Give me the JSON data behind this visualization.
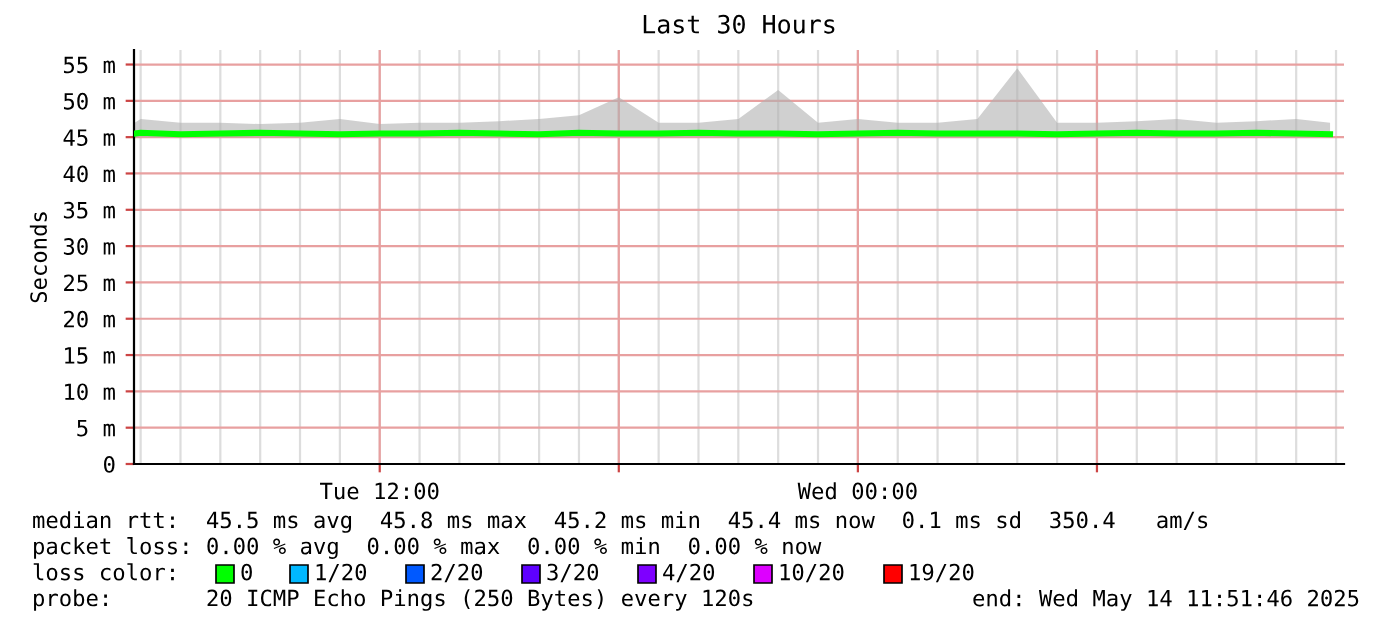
{
  "chart_data": {
    "type": "line",
    "title": "Last 30 Hours",
    "ylabel": "Seconds",
    "legend_title": "loss color:",
    "legend": "bottom",
    "x": [
      "2025-05-13T05:51",
      "2025-05-13T06:00",
      "2025-05-13T07:00",
      "2025-05-13T08:00",
      "2025-05-13T09:00",
      "2025-05-13T10:00",
      "2025-05-13T11:00",
      "2025-05-13T12:00",
      "2025-05-13T13:00",
      "2025-05-13T14:00",
      "2025-05-13T15:00",
      "2025-05-13T16:00",
      "2025-05-13T17:00",
      "2025-05-13T18:00",
      "2025-05-13T19:00",
      "2025-05-13T20:00",
      "2025-05-13T21:00",
      "2025-05-13T22:00",
      "2025-05-13T23:00",
      "2025-05-14T00:00",
      "2025-05-14T01:00",
      "2025-05-14T02:00",
      "2025-05-14T03:00",
      "2025-05-14T04:00",
      "2025-05-14T05:00",
      "2025-05-14T06:00",
      "2025-05-14T07:00",
      "2025-05-14T08:00",
      "2025-05-14T09:00",
      "2025-05-14T10:00",
      "2025-05-14T11:00",
      "2025-05-14T11:51"
    ],
    "series": [
      {
        "name": "0",
        "color": "#00ff00",
        "values": [
          45.5,
          45.6,
          45.4,
          45.5,
          45.6,
          45.5,
          45.4,
          45.5,
          45.5,
          45.6,
          45.5,
          45.4,
          45.6,
          45.5,
          45.5,
          45.6,
          45.5,
          45.5,
          45.4,
          45.5,
          45.6,
          45.5,
          45.5,
          45.5,
          45.4,
          45.5,
          45.6,
          45.5,
          45.5,
          45.6,
          45.5,
          45.4
        ],
        "lower": [
          45,
          45,
          45,
          45,
          45,
          45,
          45,
          45,
          45,
          45,
          45,
          45,
          45,
          45,
          45,
          45,
          45,
          45,
          45,
          45,
          45,
          45,
          45,
          45,
          45,
          45,
          45,
          45,
          45,
          45,
          45,
          45
        ],
        "upper": [
          47,
          47.5,
          47,
          47,
          46.8,
          47,
          47.5,
          46.8,
          47,
          47,
          47.2,
          47.5,
          48,
          50.5,
          47,
          47,
          47.5,
          51.5,
          47,
          47.5,
          47,
          47,
          47.5,
          54.5,
          47,
          47,
          47.2,
          47.5,
          47,
          47.2,
          47.5,
          47
        ]
      },
      {
        "name": "1/20",
        "color": "#00b8ff",
        "values": [
          null,
          null,
          null,
          null,
          null,
          null,
          null,
          null,
          null,
          null,
          null,
          null,
          null,
          null,
          null,
          null,
          null,
          null,
          null,
          null,
          null,
          null,
          null,
          null,
          null,
          null,
          null,
          null,
          null,
          null,
          null,
          null
        ]
      },
      {
        "name": "2/20",
        "color": "#0059ff",
        "values": [
          null,
          null,
          null,
          null,
          null,
          null,
          null,
          null,
          null,
          null,
          null,
          null,
          null,
          null,
          null,
          null,
          null,
          null,
          null,
          null,
          null,
          null,
          null,
          null,
          null,
          null,
          null,
          null,
          null,
          null,
          null,
          null
        ]
      },
      {
        "name": "3/20",
        "color": "#5e00ff",
        "values": [
          null,
          null,
          null,
          null,
          null,
          null,
          null,
          null,
          null,
          null,
          null,
          null,
          null,
          null,
          null,
          null,
          null,
          null,
          null,
          null,
          null,
          null,
          null,
          null,
          null,
          null,
          null,
          null,
          null,
          null,
          null,
          null
        ]
      },
      {
        "name": "4/20",
        "color": "#7e00ff",
        "values": [
          null,
          null,
          null,
          null,
          null,
          null,
          null,
          null,
          null,
          null,
          null,
          null,
          null,
          null,
          null,
          null,
          null,
          null,
          null,
          null,
          null,
          null,
          null,
          null,
          null,
          null,
          null,
          null,
          null,
          null,
          null,
          null
        ]
      },
      {
        "name": "10/20",
        "color": "#dd00ff",
        "values": [
          null,
          null,
          null,
          null,
          null,
          null,
          null,
          null,
          null,
          null,
          null,
          null,
          null,
          null,
          null,
          null,
          null,
          null,
          null,
          null,
          null,
          null,
          null,
          null,
          null,
          null,
          null,
          null,
          null,
          null,
          null,
          null
        ]
      },
      {
        "name": "19/20",
        "color": "#ff0000",
        "values": [
          null,
          null,
          null,
          null,
          null,
          null,
          null,
          null,
          null,
          null,
          null,
          null,
          null,
          null,
          null,
          null,
          null,
          null,
          null,
          null,
          null,
          null,
          null,
          null,
          null,
          null,
          null,
          null,
          null,
          null,
          null,
          null
        ]
      }
    ],
    "xlim": [
      "2025-05-13T05:50",
      "2025-05-14T12:12"
    ],
    "xticks": [
      {
        "value": "2025-05-13T12:00",
        "label": "Tue 12:00"
      },
      {
        "value": "2025-05-13T18:00",
        "label": null
      },
      {
        "value": "2025-05-14T00:00",
        "label": "Wed 00:00"
      },
      {
        "value": "2025-05-14T06:00",
        "label": null
      }
    ],
    "ylim": [
      0,
      57
    ],
    "yticks": [
      0,
      {
        "value": 5,
        "label": "5 m"
      },
      {
        "value": 10,
        "label": "10 m"
      },
      {
        "value": 15,
        "label": "15 m"
      },
      {
        "value": 20,
        "label": "20 m"
      },
      {
        "value": 25,
        "label": "25 m"
      },
      {
        "value": 30,
        "label": "30 m"
      },
      {
        "value": 35,
        "label": "35 m"
      },
      {
        "value": 40,
        "label": "40 m"
      },
      {
        "value": 45,
        "label": "45 m"
      },
      {
        "value": 50,
        "label": "50 m"
      },
      {
        "value": 55,
        "label": "55 m"
      }
    ],
    "grid": true,
    "annotations": [
      "median rtt:  45.5 ms avg  45.8 ms max  45.2 ms min  45.4 ms now  0.1 ms sd  350.4   am/s",
      "packet loss: 0.00 % avg  0.00 % max  0.00 % min  0.00 % now",
      "probe:       20 ICMP Echo Pings (250 Bytes) every 120s",
      "end: Wed May 14 11:51:46 2025"
    ]
  }
}
